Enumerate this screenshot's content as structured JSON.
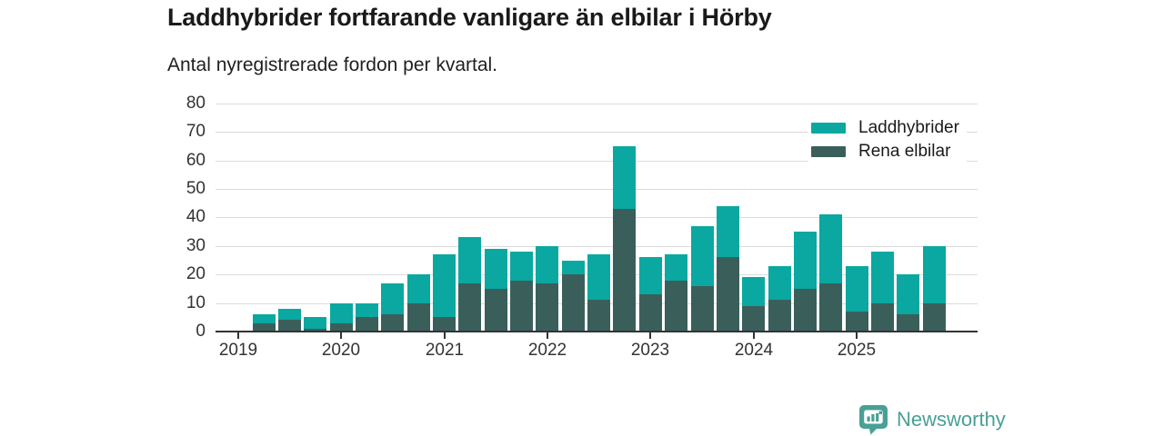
{
  "header": {
    "title": "Laddhybrider fortfarande vanligare än elbilar i Hörby",
    "subtitle": "Antal nyregistrerade fordon per kvartal."
  },
  "chart_data": {
    "type": "bar",
    "stacked": true,
    "title": "Laddhybrider fortfarande vanligare än elbilar i Hörby",
    "subtitle": "Antal nyregistrerade fordon per kvartal.",
    "categories": [
      "2019 Q1",
      "2019 Q2",
      "2019 Q3",
      "2019 Q4",
      "2020 Q1",
      "2020 Q2",
      "2020 Q3",
      "2020 Q4",
      "2021 Q1",
      "2021 Q2",
      "2021 Q3",
      "2021 Q4",
      "2022 Q1",
      "2022 Q2",
      "2022 Q3",
      "2022 Q4",
      "2023 Q1",
      "2023 Q2",
      "2023 Q3",
      "2023 Q4",
      "2024 Q1",
      "2024 Q2",
      "2024 Q3",
      "2024 Q4",
      "2025 Q1",
      "2025 Q2",
      "2025 Q3",
      "2025 Q4"
    ],
    "series": [
      {
        "name": "Laddhybrider",
        "color": "#0aa8a0",
        "values": [
          0,
          3,
          4,
          4,
          7,
          5,
          11,
          10,
          22,
          16,
          14,
          10,
          13,
          5,
          16,
          22,
          13,
          9,
          21,
          18,
          10,
          12,
          20,
          24,
          16,
          18,
          14,
          20
        ]
      },
      {
        "name": "Rena elbilar",
        "color": "#3a5f5b",
        "values": [
          0,
          3,
          4,
          1,
          3,
          5,
          6,
          10,
          5,
          17,
          15,
          18,
          17,
          20,
          11,
          43,
          13,
          18,
          16,
          26,
          9,
          11,
          15,
          17,
          7,
          10,
          6,
          10
        ]
      }
    ],
    "totals": [
      0,
      6,
      8,
      5,
      10,
      10,
      17,
      20,
      27,
      33,
      29,
      28,
      30,
      25,
      27,
      65,
      26,
      27,
      37,
      44,
      19,
      23,
      35,
      41,
      23,
      28,
      20,
      30
    ],
    "stack_order_bottom_to_top": [
      "Rena elbilar",
      "Laddhybrider"
    ],
    "ylim": [
      0,
      80
    ],
    "yticks": [
      0,
      10,
      20,
      30,
      40,
      50,
      60,
      70,
      80
    ],
    "x_tick_labels": [
      "2019",
      "2020",
      "2021",
      "2022",
      "2023",
      "2024",
      "2025"
    ],
    "legend_position": "top-right",
    "grid": "horizontal"
  },
  "footer": {
    "brand": "Newsworthy"
  },
  "colors": {
    "background": "#ffffff",
    "axis": "#333333",
    "gridline": "#dcdcdc",
    "title_text": "#1a1a1a",
    "tick_text": "#333333",
    "logo": "#48a096"
  }
}
